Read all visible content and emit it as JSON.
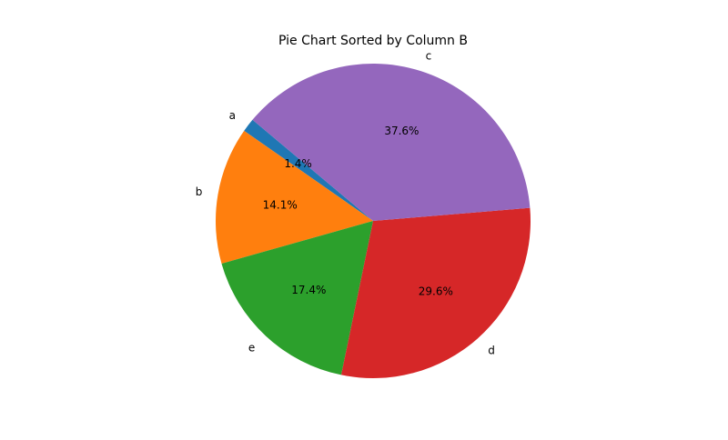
{
  "chart_data": {
    "type": "pie",
    "title": "Pie Chart Sorted by Column B",
    "categories": [
      "a",
      "b",
      "e",
      "d",
      "c"
    ],
    "values": [
      1.4,
      14.1,
      17.4,
      29.6,
      37.6
    ],
    "percent_labels": [
      "1.4%",
      "14.1%",
      "17.4%",
      "29.6%",
      "37.6%"
    ],
    "colors": [
      "#1f77b4",
      "#ff7f0e",
      "#2ca02c",
      "#d62728",
      "#9467bd"
    ],
    "start_angle_deg": 140,
    "direction": "counterclockwise"
  }
}
